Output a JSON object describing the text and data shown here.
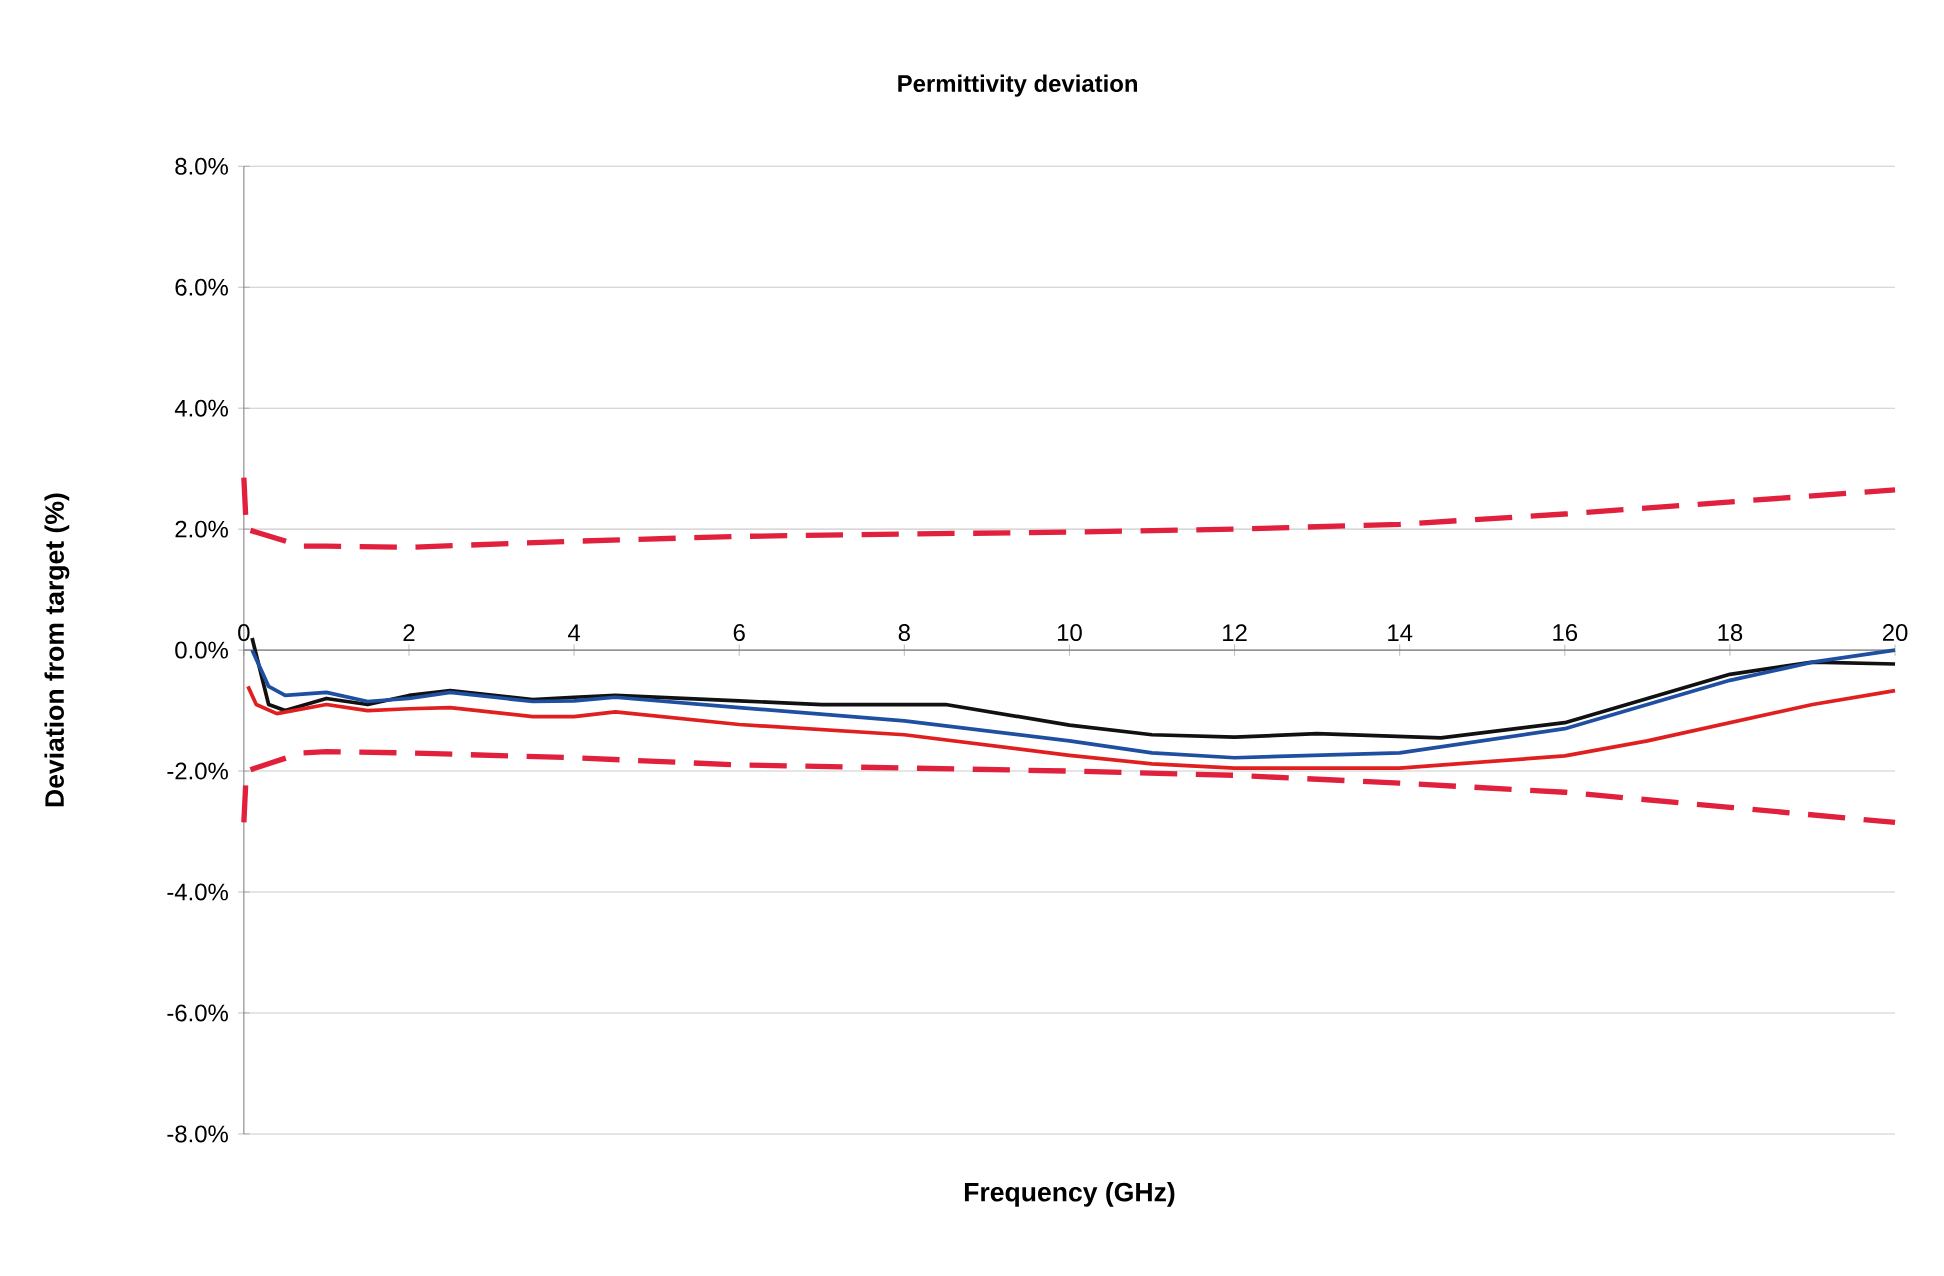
{
  "chart_data": {
    "type": "line",
    "title": "Permittivity deviation",
    "xlabel": "Frequency (GHz)",
    "ylabel": "Deviation from target (%)",
    "xlim": [
      0,
      20
    ],
    "ylim": [
      -8,
      8
    ],
    "xticks": [
      0,
      2,
      4,
      6,
      8,
      10,
      12,
      14,
      16,
      18,
      20
    ],
    "yticks": [
      {
        "value": -8,
        "label": "-8.0%"
      },
      {
        "value": -6,
        "label": "-6.0%"
      },
      {
        "value": -4,
        "label": "-4.0%"
      },
      {
        "value": -2,
        "label": "-2.0%"
      },
      {
        "value": 0,
        "label": "0.0%"
      },
      {
        "value": 2,
        "label": "2.0%"
      },
      {
        "value": 4,
        "label": "4.0%"
      },
      {
        "value": 6,
        "label": "6.0%"
      },
      {
        "value": 8,
        "label": "8.0%"
      }
    ],
    "grid": "y",
    "series": [
      {
        "color": "#e0203c",
        "line_style": "dashed",
        "x": [
          0,
          0.03,
          0.7,
          1,
          2,
          4,
          6,
          8,
          10,
          12,
          14,
          16,
          18,
          20
        ],
        "values": [
          2.85,
          2.0,
          1.72,
          1.72,
          1.7,
          1.8,
          1.88,
          1.92,
          1.95,
          2.0,
          2.08,
          2.25,
          2.45,
          2.65
        ]
      },
      {
        "color": "#e0203c",
        "line_style": "dashed",
        "x": [
          0,
          0.03,
          0.7,
          1,
          2,
          4,
          6,
          8,
          10,
          12,
          14,
          16,
          18,
          20
        ],
        "values": [
          -2.85,
          -2.0,
          -1.7,
          -1.68,
          -1.7,
          -1.78,
          -1.9,
          -1.95,
          -2.0,
          -2.07,
          -2.2,
          -2.35,
          -2.6,
          -2.85
        ]
      },
      {
        "color": "#111111",
        "line_style": "solid",
        "x": [
          0.1,
          0.3,
          0.5,
          1,
          1.5,
          2,
          2.5,
          3.5,
          4,
          4.5,
          6,
          7,
          8,
          8.5,
          10,
          11,
          12,
          13,
          14.5,
          16,
          17,
          18,
          19,
          20
        ],
        "values": [
          0.2,
          -0.9,
          -1.0,
          -0.8,
          -0.9,
          -0.75,
          -0.67,
          -0.82,
          -0.78,
          -0.75,
          -0.84,
          -0.9,
          -0.9,
          -0.9,
          -1.24,
          -1.4,
          -1.44,
          -1.38,
          -1.45,
          -1.2,
          -0.8,
          -0.4,
          -0.2,
          -0.23
        ]
      },
      {
        "color": "#1f4fa0",
        "line_style": "solid",
        "x": [
          0.1,
          0.3,
          0.5,
          1,
          1.5,
          2,
          2.5,
          3.5,
          4,
          4.5,
          6,
          8,
          10,
          11,
          12,
          14,
          16,
          17,
          18,
          19,
          20
        ],
        "values": [
          0.0,
          -0.6,
          -0.75,
          -0.7,
          -0.85,
          -0.8,
          -0.7,
          -0.85,
          -0.84,
          -0.78,
          -0.95,
          -1.17,
          -1.5,
          -1.7,
          -1.78,
          -1.7,
          -1.3,
          -0.9,
          -0.5,
          -0.2,
          0.0
        ]
      },
      {
        "color": "#e02020",
        "line_style": "solid",
        "x": [
          0.05,
          0.15,
          0.4,
          1,
          1.5,
          2,
          2.5,
          3.5,
          4,
          4.5,
          6,
          8,
          10,
          11,
          12,
          14,
          16,
          17,
          18,
          19,
          20
        ],
        "values": [
          -0.6,
          -0.9,
          -1.05,
          -0.9,
          -1.0,
          -0.97,
          -0.95,
          -1.1,
          -1.1,
          -1.02,
          -1.23,
          -1.4,
          -1.74,
          -1.88,
          -1.95,
          -1.95,
          -1.75,
          -1.5,
          -1.2,
          -0.9,
          -0.67
        ]
      }
    ]
  }
}
